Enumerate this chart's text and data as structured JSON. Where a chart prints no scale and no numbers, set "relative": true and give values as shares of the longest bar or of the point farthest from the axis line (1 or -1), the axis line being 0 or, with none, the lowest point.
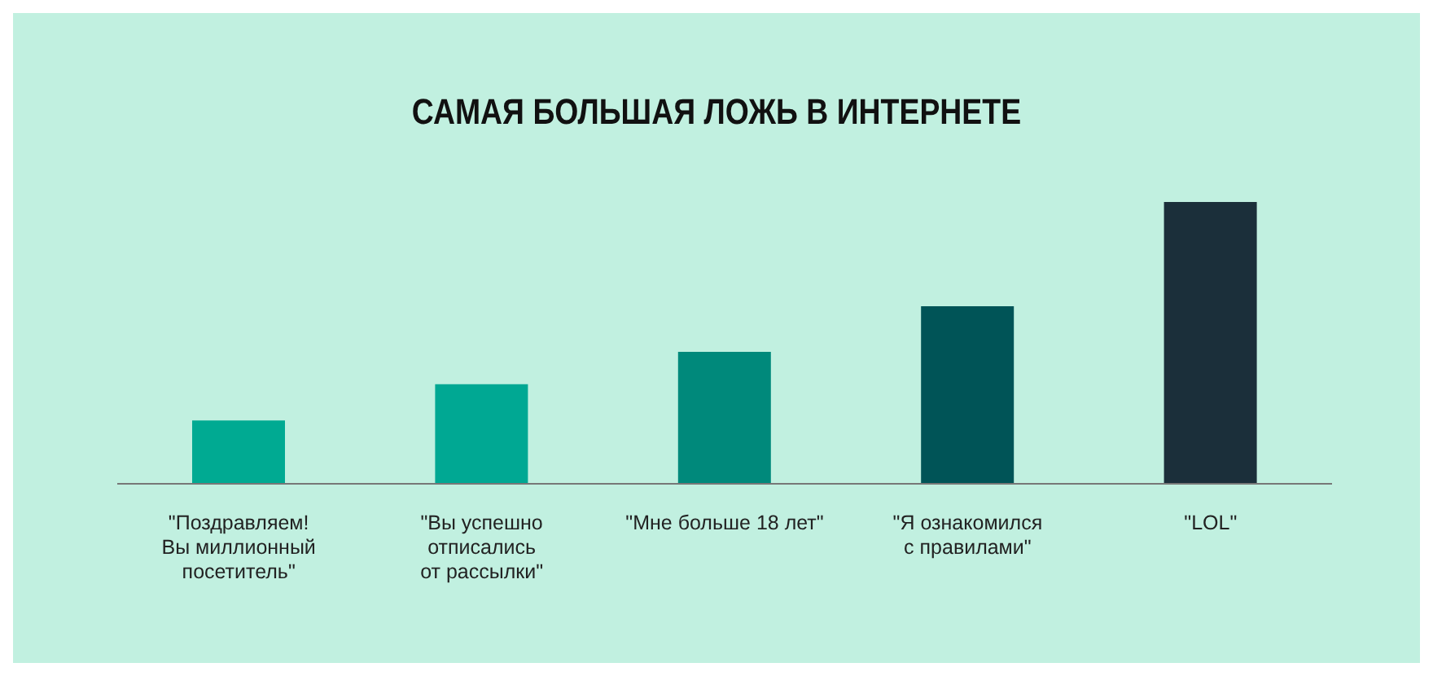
{
  "chart_data": {
    "type": "bar",
    "title": "САМАЯ БОЛЬШАЯ ЛОЖЬ В ИНТЕРНЕТЕ",
    "relative": true,
    "categories": [
      "\"Поздравляем!\nВы миллионный\nпосетитель\"",
      "\"Вы успешно\nотписались\nот рассылки\"",
      "\"Мне больше 18 лет\"",
      "\"Я ознакомился\nс правилами\"",
      "\"LOL\""
    ],
    "values": [
      0.225,
      0.353,
      0.468,
      0.63,
      1
    ],
    "colors": [
      "#00aa92",
      "#00a893",
      "#00897b",
      "#005457",
      "#1b2f3a"
    ],
    "grid": false,
    "legend": false
  }
}
